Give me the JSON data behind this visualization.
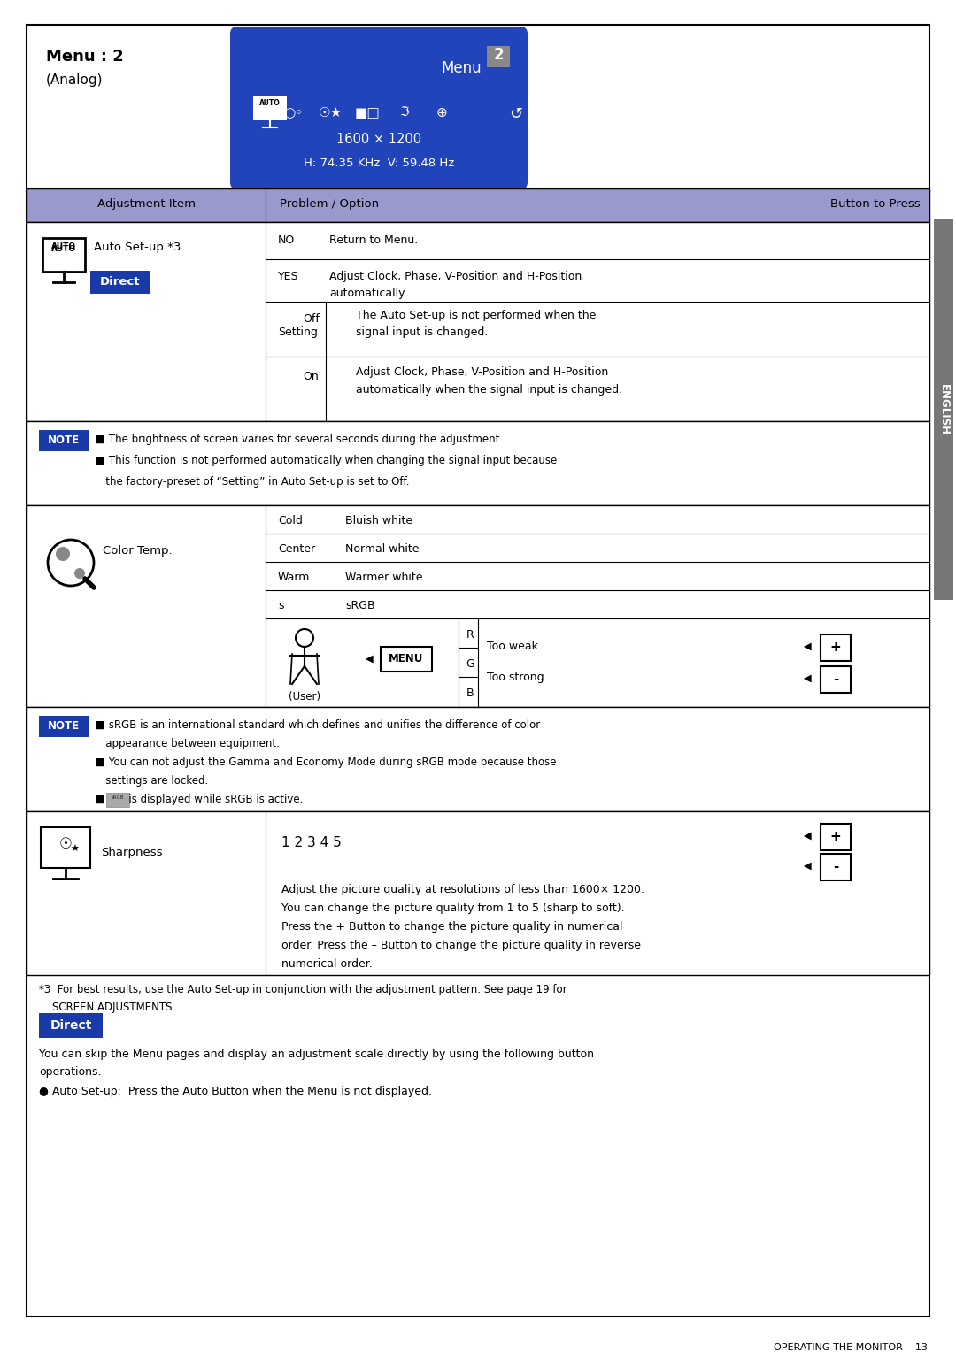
{
  "bg": "#ffffff",
  "note_bg": "#1a3aaa",
  "direct_bg": "#1a3aaa",
  "menu_box_bg": "#2244bb",
  "header_bg": "#9999cc",
  "title": "Menu : 2",
  "subtitle": "(Analog)",
  "resolution_line1": "1600 × 1200",
  "resolution_line2": "H: 74.35 KHz  V: 59.48 Hz",
  "col1_header": "Adjustment Item",
  "col2_header": "Problem / Option",
  "col3_header": "Button to Press",
  "auto_title": "Auto Set-up *3",
  "direct_label": "Direct",
  "note_label": "NOTE",
  "color_temp": "Color Temp.",
  "sharpness": "Sharpness",
  "sharpness_vals": "1 2 3 4 5",
  "english": "ENGLISH",
  "bottom_text": "OPERATING THE MONITOR    13",
  "too_weak": "Too weak",
  "too_strong": "Too strong",
  "user_label": "(User)",
  "menu_btn": "MENU",
  "rgb": [
    "R",
    "G",
    "B"
  ],
  "note1": [
    "■ The brightness of screen varies for several seconds during the adjustment.",
    "■ This function is not performed automatically when changing the signal input because",
    "   the factory-preset of “Setting” in Auto Set-up is set to Off."
  ],
  "note2": [
    "■ sRGB is an international standard which defines and unifies the difference of color",
    "   appearance between equipment.",
    "■ You can not adjust the Gamma and Economy Mode during sRGB mode because those",
    "   settings are locked.",
    "■       is displayed while sRGB is active."
  ],
  "sharp_desc": [
    "Adjust the picture quality at resolutions of less than 1600× 1200.",
    "You can change the picture quality from 1 to 5 (sharp to soft).",
    "Press the + Button to change the picture quality in numerical",
    "order. Press the – Button to change the picture quality in reverse",
    "numerical order."
  ],
  "direct_desc": [
    "You can skip the Menu pages and display an adjustment scale directly by using the following button",
    "operations.",
    "● Auto Set-up:  Press the Auto Button when the Menu is not displayed."
  ],
  "footnote1": "*3  For best results, use the Auto Set-up in conjunction with the adjustment pattern. See page 19 for",
  "footnote2": "    SCREEN ADJUSTMENTS.",
  "color_rows": [
    [
      "Cold",
      "Bluish white"
    ],
    [
      "Center",
      "Normal white"
    ],
    [
      "Warm",
      "Warmer white"
    ],
    [
      "s",
      "sRGB"
    ]
  ],
  "sidebar_color": "#777777",
  "light_header_bg": "#9999cc"
}
